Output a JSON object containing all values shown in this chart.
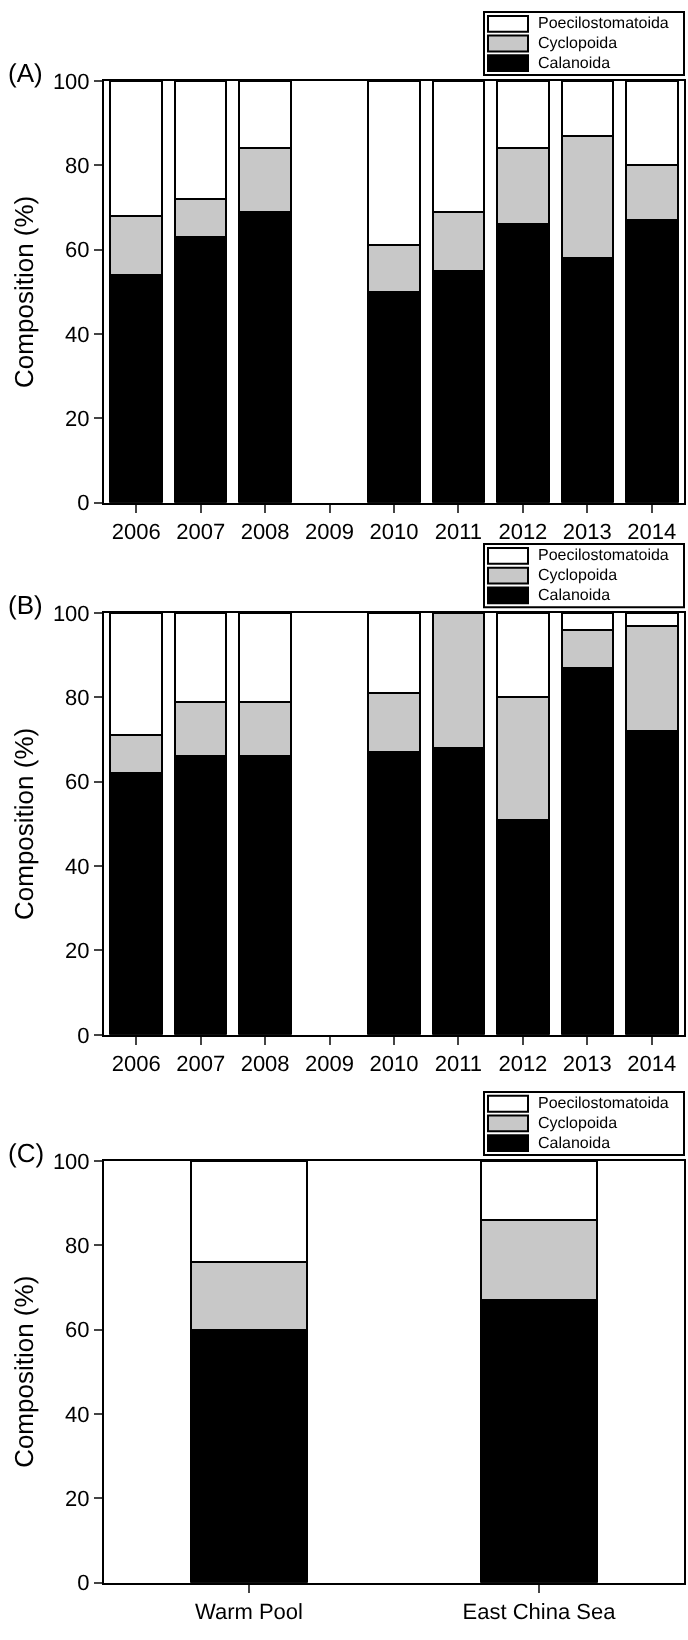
{
  "chart_data": [
    {
      "type": "bar",
      "title": "(A)",
      "ylabel": "Composition (%)",
      "stacked": true,
      "legend": "top right",
      "categories": [
        "2006",
        "2007",
        "2008",
        "2009",
        "2010",
        "2011",
        "2012",
        "2013",
        "2014"
      ],
      "ylim": [
        0,
        100
      ],
      "yticks": [
        0,
        20,
        40,
        60,
        80,
        100
      ],
      "series": [
        {
          "name": "Calanoida",
          "color": "#000000",
          "values": [
            54,
            63,
            69,
            null,
            50,
            55,
            66,
            58,
            67
          ]
        },
        {
          "name": "Cyclopoida",
          "color": "#c8c8c8",
          "values": [
            14,
            9,
            15,
            null,
            11,
            14,
            18,
            29,
            13
          ]
        },
        {
          "name": "Poecilostomatoida",
          "color": "#ffffff",
          "values": [
            32,
            28,
            16,
            null,
            39,
            31,
            16,
            13,
            20
          ]
        }
      ]
    },
    {
      "type": "bar",
      "title": "(B)",
      "ylabel": "Composition (%)",
      "stacked": true,
      "legend": "top right",
      "categories": [
        "2006",
        "2007",
        "2008",
        "2009",
        "2010",
        "2011",
        "2012",
        "2013",
        "2014"
      ],
      "ylim": [
        0,
        100
      ],
      "yticks": [
        0,
        20,
        40,
        60,
        80,
        100
      ],
      "series": [
        {
          "name": "Calanoida",
          "color": "#000000",
          "values": [
            62,
            66,
            66,
            null,
            67,
            68,
            51,
            87,
            72
          ]
        },
        {
          "name": "Cyclopoida",
          "color": "#c8c8c8",
          "values": [
            9,
            13,
            13,
            null,
            14,
            32,
            29,
            9,
            25
          ]
        },
        {
          "name": "Poecilostomatoida",
          "color": "#ffffff",
          "values": [
            29,
            21,
            21,
            null,
            19,
            0,
            20,
            4,
            3
          ]
        }
      ]
    },
    {
      "type": "bar",
      "title": "(C)",
      "ylabel": "Composition (%)",
      "stacked": true,
      "legend": "top right",
      "categories": [
        "Warm Pool",
        "East China Sea"
      ],
      "ylim": [
        0,
        100
      ],
      "yticks": [
        0,
        20,
        40,
        60,
        80,
        100
      ],
      "series": [
        {
          "name": "Calanoida",
          "color": "#000000",
          "values": [
            60,
            67
          ]
        },
        {
          "name": "Cyclopoida",
          "color": "#c8c8c8",
          "values": [
            16,
            19
          ]
        },
        {
          "name": "Poecilostomatoida",
          "color": "#ffffff",
          "values": [
            24,
            14
          ]
        }
      ]
    }
  ]
}
